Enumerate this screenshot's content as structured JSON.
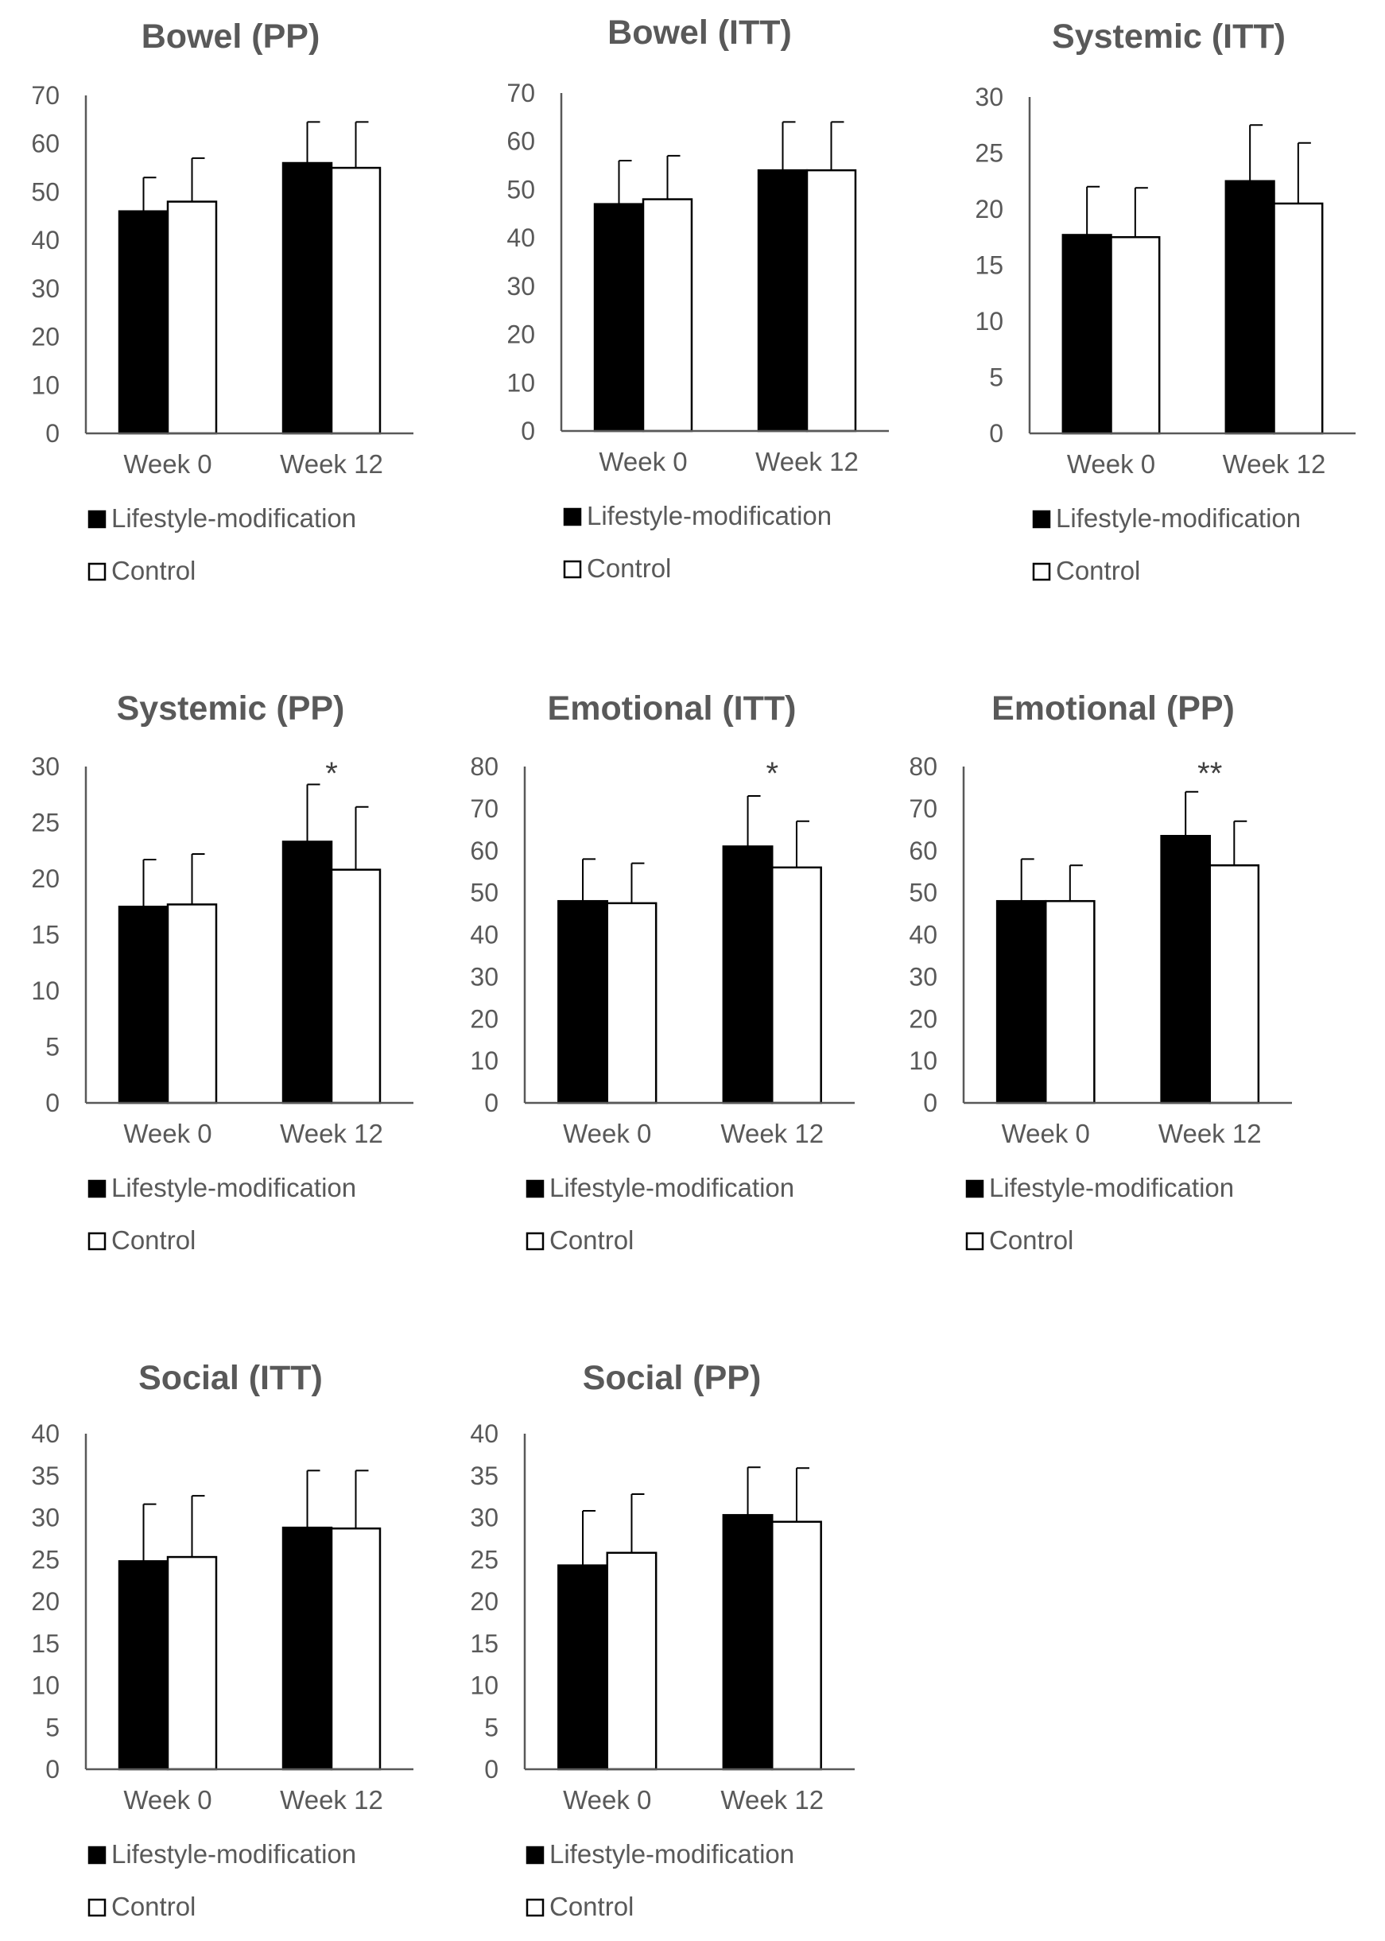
{
  "figure_title": "Bowel (PP), Bowel (ITT), Systemic (ITT), Systemic (PP), Emotional (ITT), Emotional (PP), Social (ITT), Social (PP)",
  "colors": {
    "lifestyle": "#000000",
    "control": "#ffffff",
    "axis": "#595959",
    "text": "#595959",
    "title": "#595959"
  },
  "chart_data": [
    {
      "type": "bar",
      "title": "Bowel (PP)",
      "categories": [
        "Week 0",
        "Week 12"
      ],
      "ylim": [
        0,
        70
      ],
      "yticks": [
        "0",
        "10",
        "20",
        "30",
        "40",
        "50",
        "60",
        "70"
      ],
      "series": [
        {
          "name": "Lifestyle-modification",
          "values": [
            46,
            56
          ],
          "errors": [
            7,
            8.5
          ]
        },
        {
          "name": "Control",
          "values": [
            48,
            55
          ],
          "errors": [
            9,
            9.5
          ]
        }
      ],
      "annotations": [
        "",
        ""
      ],
      "legend": [
        "Lifestyle-modification",
        "Control"
      ]
    },
    {
      "type": "bar",
      "title": "Bowel (ITT)",
      "categories": [
        "Week 0",
        "Week 12"
      ],
      "ylim": [
        0,
        70
      ],
      "yticks": [
        "0",
        "10",
        "20",
        "30",
        "40",
        "50",
        "60",
        "70"
      ],
      "series": [
        {
          "name": "Lifestyle-modification",
          "values": [
            47,
            54
          ],
          "errors": [
            9,
            10
          ]
        },
        {
          "name": "Control",
          "values": [
            48,
            54
          ],
          "errors": [
            9,
            10
          ]
        }
      ],
      "annotations": [
        "",
        ""
      ],
      "legend": [
        "Lifestyle-modification",
        "Control"
      ]
    },
    {
      "type": "bar",
      "title": "Systemic (ITT)",
      "categories": [
        "Week 0",
        "Week 12"
      ],
      "ylim": [
        0,
        30
      ],
      "yticks": [
        "0",
        "5",
        "10",
        "15",
        "20",
        "25",
        "30"
      ],
      "series": [
        {
          "name": "Lifestyle-modification",
          "values": [
            17.7,
            22.5
          ],
          "errors": [
            4.3,
            5
          ]
        },
        {
          "name": "Control",
          "values": [
            17.5,
            20.5
          ],
          "errors": [
            4.4,
            5.4
          ]
        }
      ],
      "annotations": [
        "",
        ""
      ],
      "legend": [
        "Lifestyle-modification",
        "Control"
      ]
    },
    {
      "type": "bar",
      "title": "Systemic (PP)",
      "categories": [
        "Week 0",
        "Week 12"
      ],
      "ylim": [
        0,
        30
      ],
      "yticks": [
        "0",
        "5",
        "10",
        "15",
        "20",
        "25",
        "30"
      ],
      "series": [
        {
          "name": "Lifestyle-modification",
          "values": [
            17.5,
            23.3
          ],
          "errors": [
            4.2,
            5.1
          ]
        },
        {
          "name": "Control",
          "values": [
            17.7,
            20.8
          ],
          "errors": [
            4.5,
            5.6
          ]
        }
      ],
      "annotations": [
        "",
        "*"
      ],
      "legend": [
        "Lifestyle-modification",
        "Control"
      ]
    },
    {
      "type": "bar",
      "title": "Emotional (ITT)",
      "categories": [
        "Week 0",
        "Week 12"
      ],
      "ylim": [
        0,
        80
      ],
      "yticks": [
        "0",
        "10",
        "20",
        "30",
        "40",
        "50",
        "60",
        "70",
        "80"
      ],
      "series": [
        {
          "name": "Lifestyle-modification",
          "values": [
            48,
            61
          ],
          "errors": [
            10,
            12
          ]
        },
        {
          "name": "Control",
          "values": [
            47.5,
            56
          ],
          "errors": [
            9.5,
            11
          ]
        }
      ],
      "annotations": [
        "",
        "*"
      ],
      "legend": [
        "Lifestyle-modification",
        "Control"
      ]
    },
    {
      "type": "bar",
      "title": "Emotional (PP)",
      "categories": [
        "Week 0",
        "Week 12"
      ],
      "ylim": [
        0,
        80
      ],
      "yticks": [
        "0",
        "10",
        "20",
        "30",
        "40",
        "50",
        "60",
        "70",
        "80"
      ],
      "series": [
        {
          "name": "Lifestyle-modification",
          "values": [
            48,
            63.5
          ],
          "errors": [
            10,
            10.5
          ]
        },
        {
          "name": "Control",
          "values": [
            48,
            56.5
          ],
          "errors": [
            8.5,
            10.5
          ]
        }
      ],
      "annotations": [
        "",
        "**"
      ],
      "legend": [
        "Lifestyle-modification",
        "Control"
      ]
    },
    {
      "type": "bar",
      "title": "Social (ITT)",
      "categories": [
        "Week 0",
        "Week 12"
      ],
      "ylim": [
        0,
        40
      ],
      "yticks": [
        "0",
        "5",
        "10",
        "15",
        "20",
        "25",
        "30",
        "35",
        "40"
      ],
      "series": [
        {
          "name": "Lifestyle-modification",
          "values": [
            24.8,
            28.8
          ],
          "errors": [
            6.8,
            6.8
          ]
        },
        {
          "name": "Control",
          "values": [
            25.3,
            28.7
          ],
          "errors": [
            7.3,
            6.9
          ]
        }
      ],
      "annotations": [
        "",
        ""
      ],
      "legend": [
        "Lifestyle-modification",
        "Control"
      ]
    },
    {
      "type": "bar",
      "title": "Social (PP)",
      "categories": [
        "Week 0",
        "Week 12"
      ],
      "ylim": [
        0,
        40
      ],
      "yticks": [
        "0",
        "5",
        "10",
        "15",
        "20",
        "25",
        "30",
        "35",
        "40"
      ],
      "series": [
        {
          "name": "Lifestyle-modification",
          "values": [
            24.3,
            30.3
          ],
          "errors": [
            6.5,
            5.7
          ]
        },
        {
          "name": "Control",
          "values": [
            25.8,
            29.5
          ],
          "errors": [
            7,
            6.4
          ]
        }
      ],
      "annotations": [
        "",
        ""
      ],
      "legend": [
        "Lifestyle-modification",
        "Control"
      ]
    }
  ]
}
